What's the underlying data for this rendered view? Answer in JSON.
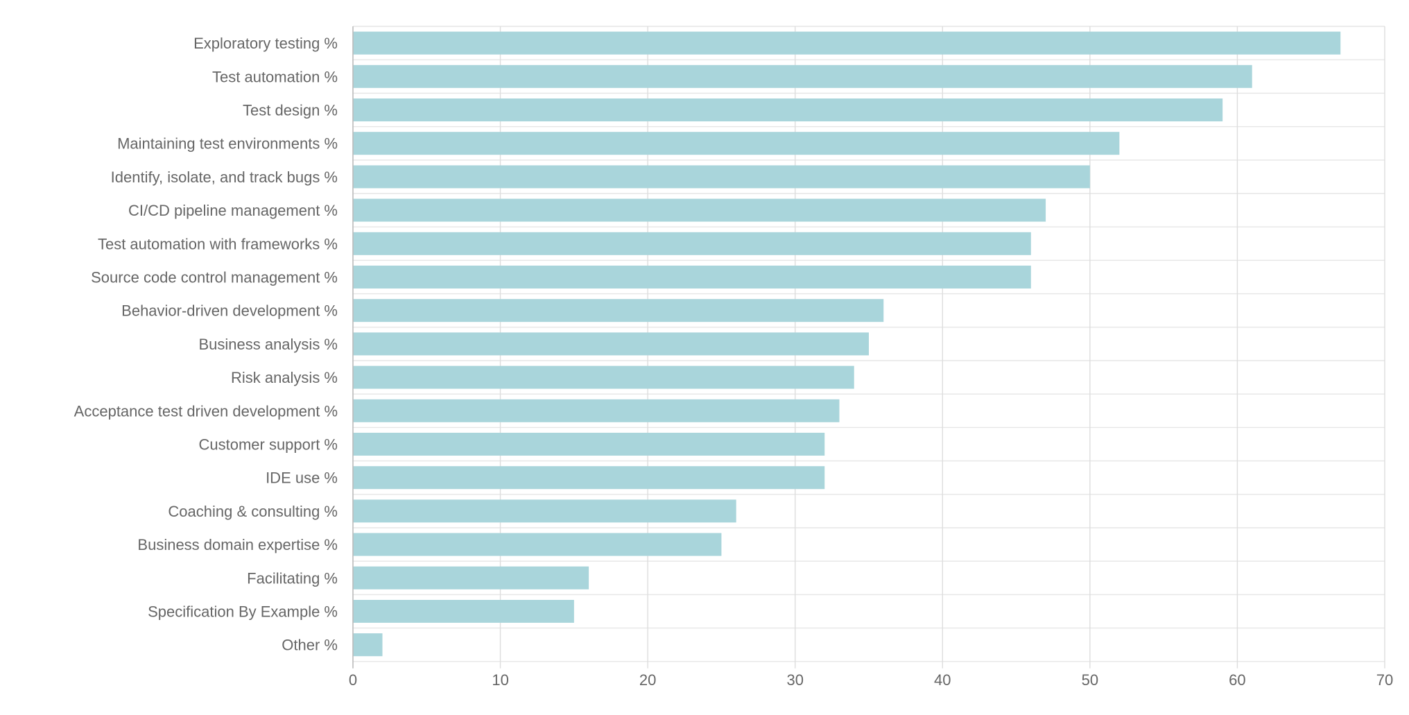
{
  "colors": {
    "bar": "#a9d5db",
    "grid": "#dddddd",
    "text": "#666666"
  },
  "chart_data": {
    "type": "bar",
    "orientation": "horizontal",
    "title": "",
    "xlabel": "",
    "ylabel": "",
    "xlim": [
      0,
      70
    ],
    "x_ticks": [
      0,
      10,
      20,
      30,
      40,
      50,
      60,
      70
    ],
    "grid": true,
    "categories": [
      "Exploratory testing %",
      "Test automation %",
      "Test design %",
      "Maintaining test environments %",
      "Identify, isolate, and track bugs %",
      "CI/CD pipeline management %",
      "Test automation with frameworks %",
      "Source code control management %",
      "Behavior-driven development %",
      "Business analysis %",
      "Risk analysis %",
      "Acceptance test driven development %",
      "Customer support %",
      "IDE use %",
      "Coaching & consulting %",
      "Business domain expertise %",
      "Facilitating %",
      "Specification By Example %",
      "Other %"
    ],
    "values": [
      67,
      61,
      59,
      52,
      50,
      47,
      46,
      46,
      36,
      35,
      34,
      33,
      32,
      32,
      26,
      25,
      16,
      15,
      2
    ]
  }
}
